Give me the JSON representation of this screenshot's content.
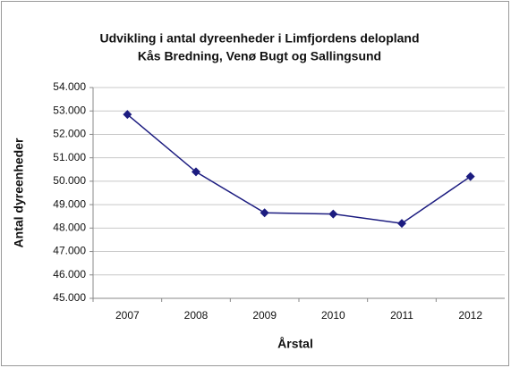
{
  "chart_data": {
    "type": "line",
    "title": "Udvikling i antal dyreenheder i Limfjordens delopland",
    "subtitle": "Kås Bredning, Venø Bugt og Sallingsund",
    "x_label": "Årstal",
    "y_label": "Antal dyreenheder",
    "categories": [
      "2007",
      "2008",
      "2009",
      "2010",
      "2011",
      "2012"
    ],
    "series": [
      {
        "name": "Antal dyreenheder",
        "color": "#1c1c80",
        "values": [
          52850,
          50400,
          48650,
          48600,
          48200,
          50200
        ]
      }
    ],
    "ylim": [
      45000,
      54000
    ],
    "yticks": [
      {
        "value": 45000,
        "label": "45.000"
      },
      {
        "value": 46000,
        "label": "46.000"
      },
      {
        "value": 47000,
        "label": "47.000"
      },
      {
        "value": 48000,
        "label": "48.000"
      },
      {
        "value": 49000,
        "label": "49.000"
      },
      {
        "value": 50000,
        "label": "50.000"
      },
      {
        "value": 51000,
        "label": "51.000"
      },
      {
        "value": 52000,
        "label": "52.000"
      },
      {
        "value": 53000,
        "label": "53.000"
      },
      {
        "value": 54000,
        "label": "54.000"
      }
    ],
    "grid": true
  }
}
